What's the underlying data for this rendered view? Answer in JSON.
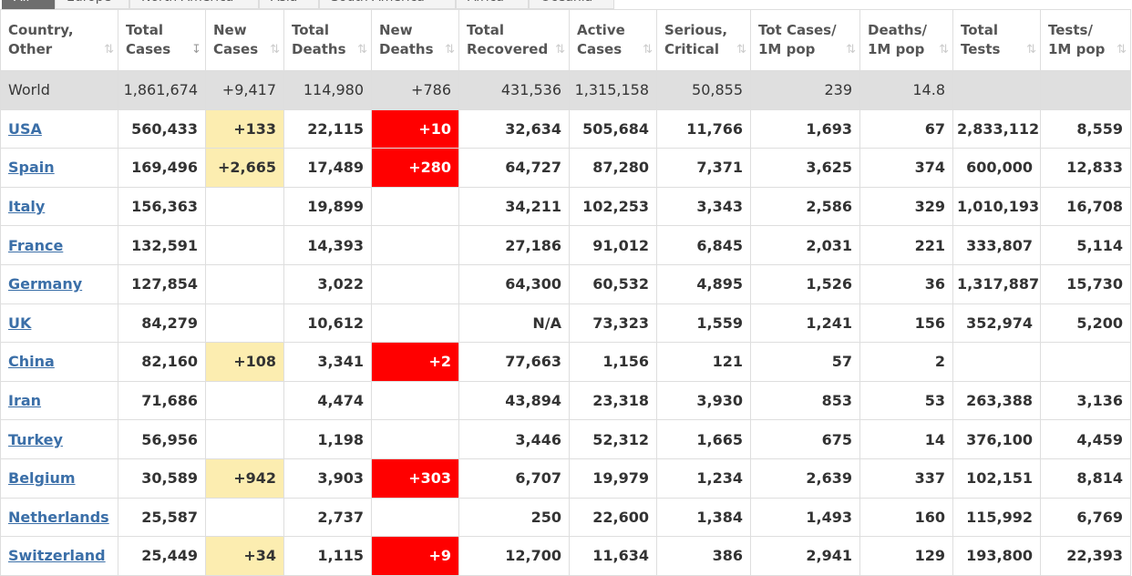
{
  "tabs": [
    "All",
    "Europe",
    "North America",
    "Asia",
    "South America",
    "Africa",
    "Oceania"
  ],
  "columns": [
    {
      "l1": "Country,",
      "l2": "Other"
    },
    {
      "l1": "Total",
      "l2": "Cases"
    },
    {
      "l1": "New",
      "l2": "Cases"
    },
    {
      "l1": "Total",
      "l2": "Deaths"
    },
    {
      "l1": "New",
      "l2": "Deaths"
    },
    {
      "l1": "Total",
      "l2": "Recovered"
    },
    {
      "l1": "Active",
      "l2": "Cases"
    },
    {
      "l1": "Serious,",
      "l2": "Critical"
    },
    {
      "l1": "Tot Cases/",
      "l2": "1M pop"
    },
    {
      "l1": "Deaths/",
      "l2": "1M pop"
    },
    {
      "l1": "Total",
      "l2": "Tests"
    },
    {
      "l1": "Tests/",
      "l2": "1M pop"
    }
  ],
  "sort_icon": "⇅",
  "sort_icon_active": "↧",
  "world": [
    "World",
    "1,861,674",
    "+9,417",
    "114,980",
    "+786",
    "431,536",
    "1,315,158",
    "50,855",
    "239",
    "14.8",
    "",
    ""
  ],
  "rows": [
    [
      "USA",
      "560,433",
      "+133",
      "22,115",
      "+10",
      "32,634",
      "505,684",
      "11,766",
      "1,693",
      "67",
      "2,833,112",
      "8,559"
    ],
    [
      "Spain",
      "169,496",
      "+2,665",
      "17,489",
      "+280",
      "64,727",
      "87,280",
      "7,371",
      "3,625",
      "374",
      "600,000",
      "12,833"
    ],
    [
      "Italy",
      "156,363",
      "",
      "19,899",
      "",
      "34,211",
      "102,253",
      "3,343",
      "2,586",
      "329",
      "1,010,193",
      "16,708"
    ],
    [
      "France",
      "132,591",
      "",
      "14,393",
      "",
      "27,186",
      "91,012",
      "6,845",
      "2,031",
      "221",
      "333,807",
      "5,114"
    ],
    [
      "Germany",
      "127,854",
      "",
      "3,022",
      "",
      "64,300",
      "60,532",
      "4,895",
      "1,526",
      "36",
      "1,317,887",
      "15,730"
    ],
    [
      "UK",
      "84,279",
      "",
      "10,612",
      "",
      "N/A",
      "73,323",
      "1,559",
      "1,241",
      "156",
      "352,974",
      "5,200"
    ],
    [
      "China",
      "82,160",
      "+108",
      "3,341",
      "+2",
      "77,663",
      "1,156",
      "121",
      "57",
      "2",
      "",
      ""
    ],
    [
      "Iran",
      "71,686",
      "",
      "4,474",
      "",
      "43,894",
      "23,318",
      "3,930",
      "853",
      "53",
      "263,388",
      "3,136"
    ],
    [
      "Turkey",
      "56,956",
      "",
      "1,198",
      "",
      "3,446",
      "52,312",
      "1,665",
      "675",
      "14",
      "376,100",
      "4,459"
    ],
    [
      "Belgium",
      "30,589",
      "+942",
      "3,903",
      "+303",
      "6,707",
      "19,979",
      "1,234",
      "2,639",
      "337",
      "102,151",
      "8,814"
    ],
    [
      "Netherlands",
      "25,587",
      "",
      "2,737",
      "",
      "250",
      "22,600",
      "1,384",
      "1,493",
      "160",
      "115,992",
      "6,769"
    ],
    [
      "Switzerland",
      "25,449",
      "+34",
      "1,115",
      "+9",
      "12,700",
      "11,634",
      "386",
      "2,941",
      "129",
      "193,800",
      "22,393"
    ]
  ]
}
